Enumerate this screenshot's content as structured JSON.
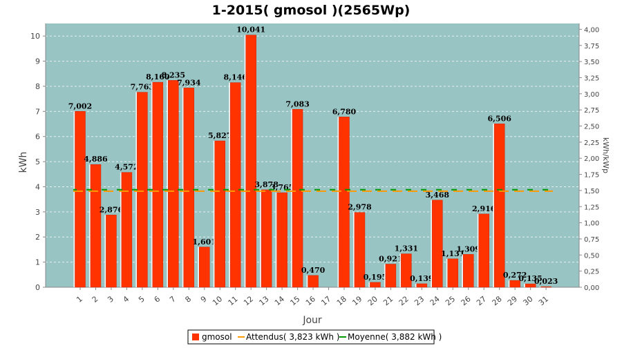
{
  "chart_data": {
    "type": "bar",
    "title": "1-2015( gmosol )(2565Wp)",
    "xlabel": "Jour",
    "ylabel": "kWh",
    "ylabel_right": "kWh/kWp",
    "ylim": [
      0,
      10.5
    ],
    "ylim_right": [
      0,
      4.09
    ],
    "yticks": [
      "0",
      "1",
      "2",
      "3",
      "4",
      "5",
      "6",
      "7",
      "8",
      "9",
      "10"
    ],
    "yticks_right": [
      "0,00",
      "0,25",
      "0,50",
      "0,75",
      "1,00",
      "1,25",
      "1,50",
      "1,75",
      "2,00",
      "2,25",
      "2,50",
      "2,75",
      "3,00",
      "3,25",
      "3,50",
      "3,75",
      "4,00"
    ],
    "yticks_right_values": [
      0,
      0.25,
      0.5,
      0.75,
      1,
      1.25,
      1.5,
      1.75,
      2,
      2.25,
      2.5,
      2.75,
      3,
      3.25,
      3.5,
      3.75,
      4
    ],
    "categories": [
      "1",
      "2",
      "3",
      "4",
      "5",
      "6",
      "7",
      "8",
      "9",
      "10",
      "11",
      "12",
      "13",
      "14",
      "15",
      "16",
      "17",
      "18",
      "19",
      "20",
      "21",
      "22",
      "23",
      "24",
      "25",
      "26",
      "27",
      "28",
      "29",
      "30",
      "31"
    ],
    "series": [
      {
        "name": "gmosol",
        "values": [
          7.002,
          4.886,
          2.876,
          4.572,
          7.763,
          8.16,
          8.235,
          7.934,
          1.601,
          5.827,
          8.146,
          10.041,
          3.878,
          3.765,
          7.083,
          0.47,
          0,
          6.78,
          2.978,
          0.195,
          0.921,
          1.331,
          0.139,
          3.468,
          1.131,
          1.309,
          2.916,
          6.506,
          0.272,
          0.135,
          0.023
        ],
        "labels": [
          "7,002",
          "4,886",
          "2,876",
          "4,572",
          "7,763",
          "8,160",
          "8,235",
          "7,934",
          "1,601",
          "5,827",
          "8,146",
          "10,041",
          "3,878",
          "3,765",
          "7,083",
          "0,470",
          "",
          "6,780",
          "2,978",
          "0,195",
          "0,921",
          "1,331",
          "0,139",
          "3,468",
          "1,131",
          "1,309",
          "2,916",
          "6,506",
          "0,272",
          "0,135",
          "0,023"
        ]
      }
    ],
    "lines": [
      {
        "name": "Attendus( 3,823 kWh )",
        "value": 3.823,
        "color": "#ff9900"
      },
      {
        "name": "Moyenne( 3,882 kWh )",
        "value": 3.882,
        "color": "#009900"
      }
    ],
    "grid": true,
    "legend": "bottom",
    "colors": {
      "bar": "#ff3300",
      "plot_bg": "#99c4c4",
      "grid": "#e8f0f0"
    }
  }
}
